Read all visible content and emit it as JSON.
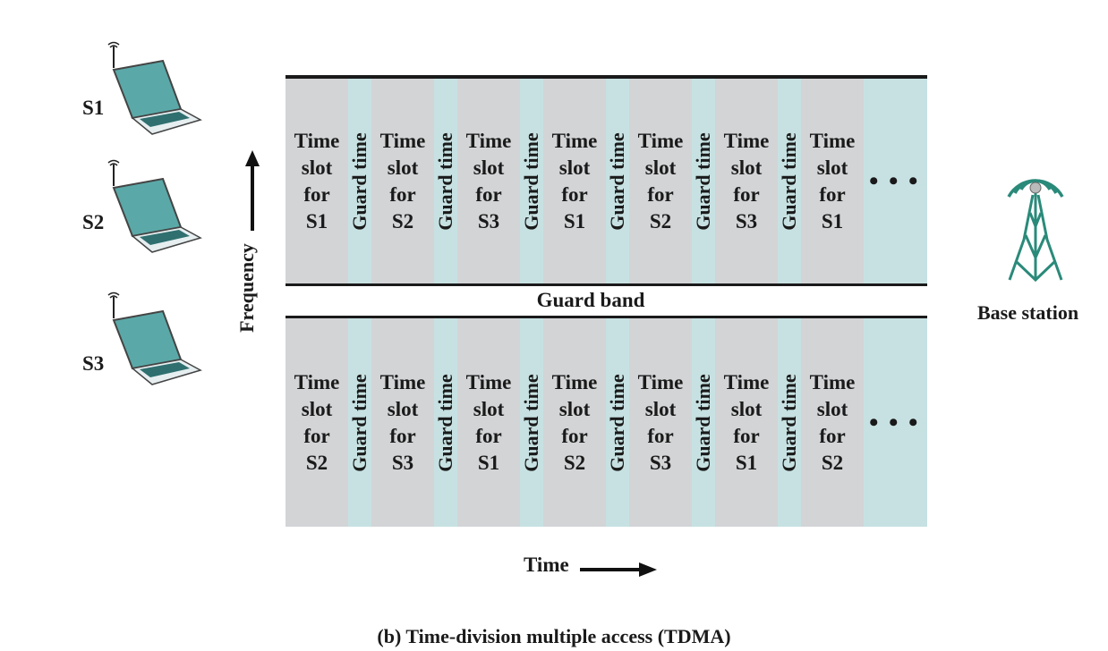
{
  "stations": [
    {
      "label": "S1"
    },
    {
      "label": "S2"
    },
    {
      "label": "S3"
    }
  ],
  "axis": {
    "y_label": "Frequency",
    "x_label": "Time"
  },
  "guard_time_label": "Guard time",
  "guard_band_label": "Guard band",
  "ellipsis": "• • •",
  "base_station_label": "Base station",
  "caption": "(b) Time-division multiple access (TDMA)",
  "slot_prefix": [
    "Time",
    "slot",
    "for"
  ],
  "top_band": {
    "slots": [
      "S1",
      "S2",
      "S3",
      "S1",
      "S2",
      "S3",
      "S1"
    ]
  },
  "bottom_band": {
    "slots": [
      "S2",
      "S3",
      "S1",
      "S2",
      "S3",
      "S1",
      "S2"
    ]
  },
  "colors": {
    "slot_fill": "#d3d4d6",
    "guard_fill": "#c7e1e2",
    "laptop_screen": "#5aa9a8",
    "tower": "#2a8a7a"
  }
}
